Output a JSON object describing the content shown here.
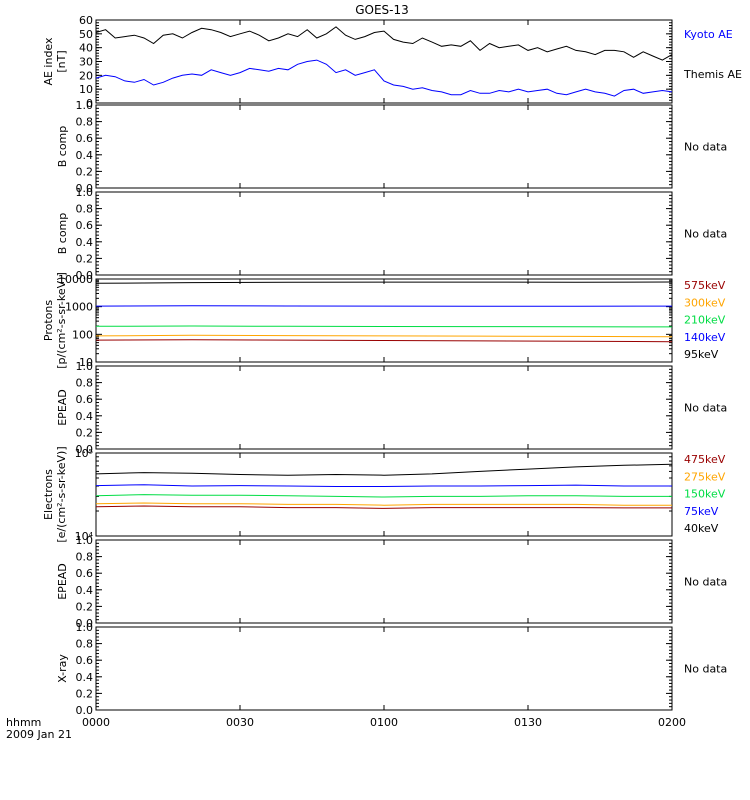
{
  "title": "GOES-13",
  "footer": {
    "line1": "hhmm",
    "line2": "2009 Jan 21"
  },
  "x_axis": {
    "range_minutes": [
      0,
      120
    ],
    "ticks": [
      {
        "minute": 0,
        "label": "0000"
      },
      {
        "minute": 30,
        "label": "0030"
      },
      {
        "minute": 60,
        "label": "0100"
      },
      {
        "minute": 90,
        "label": "0130"
      },
      {
        "minute": 120,
        "label": "0200"
      }
    ]
  },
  "colors": {
    "black": "#000000",
    "blue": "#0000ff",
    "green": "#00dd44",
    "orange": "#ffa500",
    "darkred": "#990000"
  },
  "chart_data": [
    {
      "type": "line",
      "ylabel_lines": [
        "AE index",
        "[nT]"
      ],
      "ylim": [
        0,
        60
      ],
      "yscale": "linear",
      "yticks": [
        0,
        10,
        20,
        30,
        40,
        50,
        60
      ],
      "ytick_labels": [
        "0",
        "10",
        "20",
        "30",
        "40",
        "50",
        "60"
      ],
      "legend": [
        {
          "text": "Kyoto AE",
          "color": "#0000ff"
        },
        {
          "text": "Themis AE",
          "color": "#000000"
        }
      ],
      "series": [
        {
          "color": "#000000",
          "x": [
            0,
            2,
            4,
            6,
            8,
            10,
            12,
            14,
            16,
            18,
            20,
            22,
            24,
            26,
            28,
            30,
            32,
            34,
            36,
            38,
            40,
            42,
            44,
            46,
            48,
            50,
            52,
            54,
            56,
            58,
            60,
            62,
            64,
            66,
            68,
            70,
            72,
            74,
            76,
            78,
            80,
            82,
            84,
            86,
            88,
            90,
            92,
            94,
            96,
            98,
            100,
            102,
            104,
            106,
            108,
            110,
            112,
            114,
            116,
            118,
            120
          ],
          "y": [
            51,
            53,
            47,
            48,
            49,
            47,
            43,
            49,
            50,
            47,
            51,
            54,
            53,
            51,
            48,
            50,
            52,
            49,
            45,
            47,
            50,
            48,
            53,
            47,
            50,
            55,
            49,
            46,
            48,
            51,
            52,
            46,
            44,
            43,
            47,
            44,
            41,
            42,
            41,
            45,
            38,
            43,
            40,
            41,
            42,
            38,
            40,
            37,
            39,
            41,
            38,
            37,
            35,
            38,
            38,
            37,
            33,
            37,
            34,
            31,
            35
          ]
        },
        {
          "color": "#0000ff",
          "x": [
            0,
            2,
            4,
            6,
            8,
            10,
            12,
            14,
            16,
            18,
            20,
            22,
            24,
            26,
            28,
            30,
            32,
            34,
            36,
            38,
            40,
            42,
            44,
            46,
            48,
            50,
            52,
            54,
            56,
            58,
            60,
            62,
            64,
            66,
            68,
            70,
            72,
            74,
            76,
            78,
            80,
            82,
            84,
            86,
            88,
            90,
            92,
            94,
            96,
            98,
            100,
            102,
            104,
            106,
            108,
            110,
            112,
            114,
            116,
            118,
            120
          ],
          "y": [
            18,
            20,
            19,
            16,
            15,
            17,
            13,
            15,
            18,
            20,
            21,
            20,
            24,
            22,
            20,
            22,
            25,
            24,
            23,
            25,
            24,
            28,
            30,
            31,
            28,
            22,
            24,
            20,
            22,
            24,
            16,
            13,
            12,
            10,
            11,
            9,
            8,
            6,
            6,
            9,
            7,
            7,
            9,
            8,
            10,
            8,
            9,
            10,
            7,
            6,
            8,
            10,
            8,
            7,
            5,
            9,
            10,
            7,
            8,
            9,
            8
          ]
        }
      ]
    },
    {
      "type": "line",
      "ylabel_lines": [
        "B comp"
      ],
      "ylim": [
        0,
        1
      ],
      "yscale": "linear",
      "yticks": [
        0,
        0.2,
        0.4,
        0.6,
        0.8,
        1.0
      ],
      "ytick_labels": [
        "0.0",
        "0.2",
        "0.4",
        "0.6",
        "0.8",
        "1.0"
      ],
      "nodata": "No data",
      "series": []
    },
    {
      "type": "line",
      "ylabel_lines": [
        "B comp"
      ],
      "ylim": [
        0,
        1
      ],
      "yscale": "linear",
      "yticks": [
        0,
        0.2,
        0.4,
        0.6,
        0.8,
        1.0
      ],
      "ytick_labels": [
        "0.0",
        "0.2",
        "0.4",
        "0.6",
        "0.8",
        "1.0"
      ],
      "nodata": "No data",
      "series": []
    },
    {
      "type": "line",
      "ylabel_lines": [
        "Protons",
        "[p/(cm²-s-sr-keV)]"
      ],
      "ylim": [
        10,
        10000
      ],
      "yscale": "log",
      "yticks": [
        10,
        100,
        1000,
        10000
      ],
      "ytick_labels": [
        "10",
        "100",
        "1000",
        "10000"
      ],
      "legend": [
        {
          "text": "575keV",
          "color": "#990000"
        },
        {
          "text": "300keV",
          "color": "#ffa500"
        },
        {
          "text": "210keV",
          "color": "#00dd44"
        },
        {
          "text": "140keV",
          "color": "#0000ff"
        },
        {
          "text": "95keV",
          "color": "#000000"
        }
      ],
      "series": [
        {
          "color": "#000000",
          "x": [
            0,
            20,
            40,
            60,
            80,
            100,
            120
          ],
          "y": [
            7000,
            7400,
            7600,
            7700,
            7700,
            7600,
            7800
          ]
        },
        {
          "color": "#0000ff",
          "x": [
            0,
            20,
            40,
            60,
            80,
            100,
            120
          ],
          "y": [
            1050,
            1080,
            1060,
            1050,
            1040,
            1040,
            1050
          ]
        },
        {
          "color": "#00dd44",
          "x": [
            0,
            20,
            40,
            60,
            80,
            100,
            120
          ],
          "y": [
            195,
            200,
            195,
            192,
            190,
            188,
            186
          ]
        },
        {
          "color": "#ffa500",
          "x": [
            0,
            20,
            40,
            60,
            80,
            100,
            120
          ],
          "y": [
            88,
            92,
            90,
            88,
            86,
            84,
            82
          ]
        },
        {
          "color": "#990000",
          "x": [
            0,
            20,
            40,
            60,
            80,
            100,
            120
          ],
          "y": [
            62,
            64,
            62,
            60,
            58,
            56,
            54
          ]
        }
      ]
    },
    {
      "type": "line",
      "ylabel_lines": [
        "EPEAD"
      ],
      "ylim": [
        0,
        1
      ],
      "yscale": "linear",
      "yticks": [
        0,
        0.2,
        0.4,
        0.6,
        0.8,
        1.0
      ],
      "ytick_labels": [
        "0.0",
        "0.2",
        "0.4",
        "0.6",
        "0.8",
        "1.0"
      ],
      "nodata": "No data",
      "series": []
    },
    {
      "type": "line",
      "ylabel_lines": [
        "Electrons",
        "[e/(cm²-s-sr-keV)]"
      ],
      "ylim": [
        10000,
        100000
      ],
      "yscale": "log",
      "yticks": [
        10000,
        100000
      ],
      "ytick_labels": [
        "10⁴",
        "10⁵"
      ],
      "legend": [
        {
          "text": "475keV",
          "color": "#990000"
        },
        {
          "text": "275keV",
          "color": "#ffa500"
        },
        {
          "text": "150keV",
          "color": "#00dd44"
        },
        {
          "text": "75keV",
          "color": "#0000ff"
        },
        {
          "text": "40keV",
          "color": "#000000"
        }
      ],
      "series": [
        {
          "color": "#000000",
          "x": [
            0,
            10,
            20,
            30,
            40,
            50,
            60,
            70,
            80,
            90,
            100,
            110,
            120
          ],
          "y": [
            56000,
            58000,
            57000,
            55000,
            54000,
            55000,
            54000,
            56000,
            60000,
            64000,
            68000,
            71000,
            73000
          ]
        },
        {
          "color": "#0000ff",
          "x": [
            0,
            10,
            20,
            30,
            40,
            50,
            60,
            70,
            80,
            90,
            100,
            110,
            120
          ],
          "y": [
            40500,
            41500,
            40000,
            40500,
            40000,
            39500,
            39500,
            40000,
            40000,
            40500,
            41000,
            40000,
            40000
          ]
        },
        {
          "color": "#00dd44",
          "x": [
            0,
            10,
            20,
            30,
            40,
            50,
            60,
            70,
            80,
            90,
            100,
            110,
            120
          ],
          "y": [
            30500,
            31500,
            31000,
            31000,
            30500,
            30000,
            29500,
            30000,
            30000,
            30500,
            30500,
            30000,
            30000
          ]
        },
        {
          "color": "#ffa500",
          "x": [
            0,
            10,
            20,
            30,
            40,
            50,
            60,
            70,
            80,
            90,
            100,
            110,
            120
          ],
          "y": [
            24500,
            25000,
            24500,
            24500,
            24000,
            24000,
            23500,
            24000,
            24000,
            24000,
            24000,
            23500,
            23500
          ]
        },
        {
          "color": "#990000",
          "x": [
            0,
            10,
            20,
            30,
            40,
            50,
            60,
            70,
            80,
            90,
            100,
            110,
            120
          ],
          "y": [
            22500,
            23000,
            22500,
            22500,
            22000,
            22000,
            21500,
            22000,
            22000,
            22000,
            22000,
            21800,
            21800
          ]
        }
      ]
    },
    {
      "type": "line",
      "ylabel_lines": [
        "EPEAD"
      ],
      "ylim": [
        0,
        1
      ],
      "yscale": "linear",
      "yticks": [
        0,
        0.2,
        0.4,
        0.6,
        0.8,
        1.0
      ],
      "ytick_labels": [
        "0.0",
        "0.2",
        "0.4",
        "0.6",
        "0.8",
        "1.0"
      ],
      "nodata": "No data",
      "series": []
    },
    {
      "type": "line",
      "ylabel_lines": [
        "X-ray"
      ],
      "ylim": [
        0,
        1
      ],
      "yscale": "linear",
      "yticks": [
        0,
        0.2,
        0.4,
        0.6,
        0.8,
        1.0
      ],
      "ytick_labels": [
        "0.0",
        "0.2",
        "0.4",
        "0.6",
        "0.8",
        "1.0"
      ],
      "nodata": "No data",
      "series": []
    }
  ]
}
